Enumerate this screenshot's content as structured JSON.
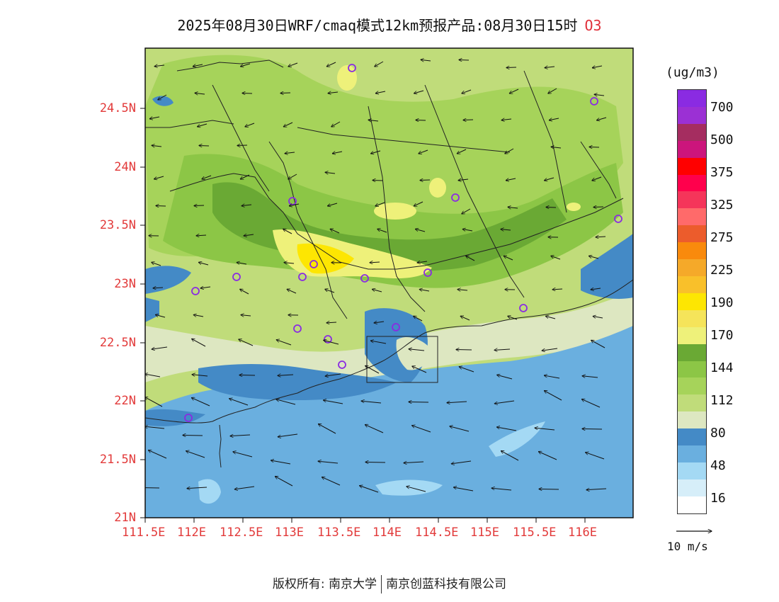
{
  "title": "2025年08月30日WRF/cmaq模式12km预报产品:08月30日15时",
  "species": "O3",
  "map": {
    "lat_ticks": [
      "24.5N",
      "24N",
      "23.5N",
      "23N",
      "22.5N",
      "22N",
      "21.5N",
      "21N"
    ],
    "lon_ticks": [
      "111.5E",
      "112E",
      "112.5E",
      "113E",
      "113.5E",
      "114E",
      "114.5E",
      "115E",
      "115.5E",
      "116E"
    ]
  },
  "legend": {
    "unit": "(ug/m3)",
    "colors": [
      "#ffffff",
      "#d6eef9",
      "#a4d9f4",
      "#6aafdf",
      "#448ac6",
      "#dde7c1",
      "#c0dc7a",
      "#a6d35a",
      "#8cc646",
      "#6aa934",
      "#eef17a",
      "#f5e45a",
      "#fde602",
      "#f9c02a",
      "#f5a929",
      "#f98a0c",
      "#ec5c2c",
      "#ff6a6a",
      "#f5355a",
      "#ff004c",
      "#ff0000",
      "#cc157c",
      "#a52d60",
      "#9b30d4",
      "#8a2be2"
    ],
    "labels": [
      "16",
      "48",
      "80",
      "112",
      "144",
      "170",
      "190",
      "225",
      "275",
      "325",
      "375",
      "500",
      "700"
    ]
  },
  "wind_reference": "10 m/s",
  "copyright": {
    "left": "版权所有: 南京大学",
    "right": "南京创蓝科技有限公司"
  }
}
